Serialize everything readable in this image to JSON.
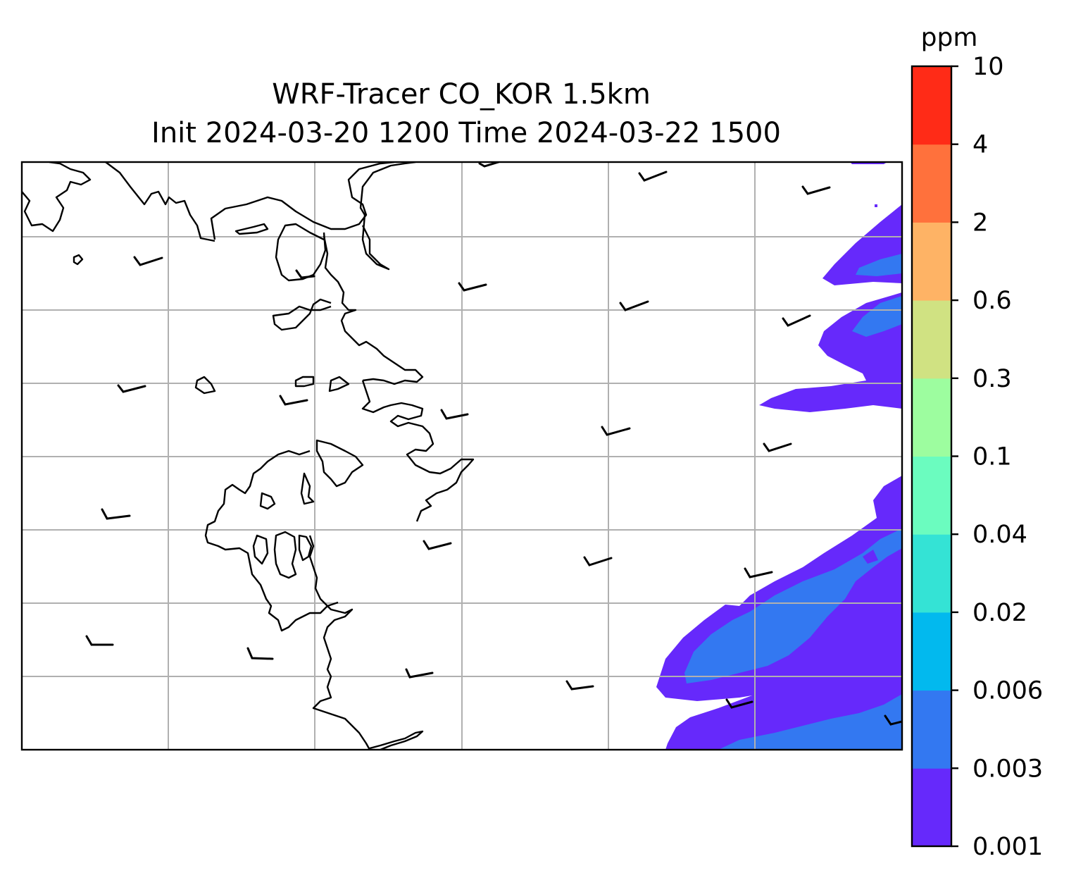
{
  "title": {
    "line1": "WRF-Tracer CO_KOR 1.5km",
    "line2": "Init 2024-03-20 1200 Time 2024-03-22 1500"
  },
  "colorbar": {
    "unit": "ppm",
    "levels": [
      "0.001",
      "0.003",
      "0.006",
      "0.02",
      "0.04",
      "0.1",
      "0.3",
      "0.6",
      "2",
      "4",
      "10"
    ],
    "colors": [
      "#6629fb",
      "#3378f1",
      "#02b9ee",
      "#34e3d5",
      "#6bfcbf",
      "#9dfd9f",
      "#d0e282",
      "#feb365",
      "#ff713c",
      "#ff2b17"
    ]
  },
  "map": {
    "gridlines": true,
    "gridline_color": "#b0b0b0",
    "coastline_color": "#000000",
    "wind_barb_color": "#000000"
  }
}
